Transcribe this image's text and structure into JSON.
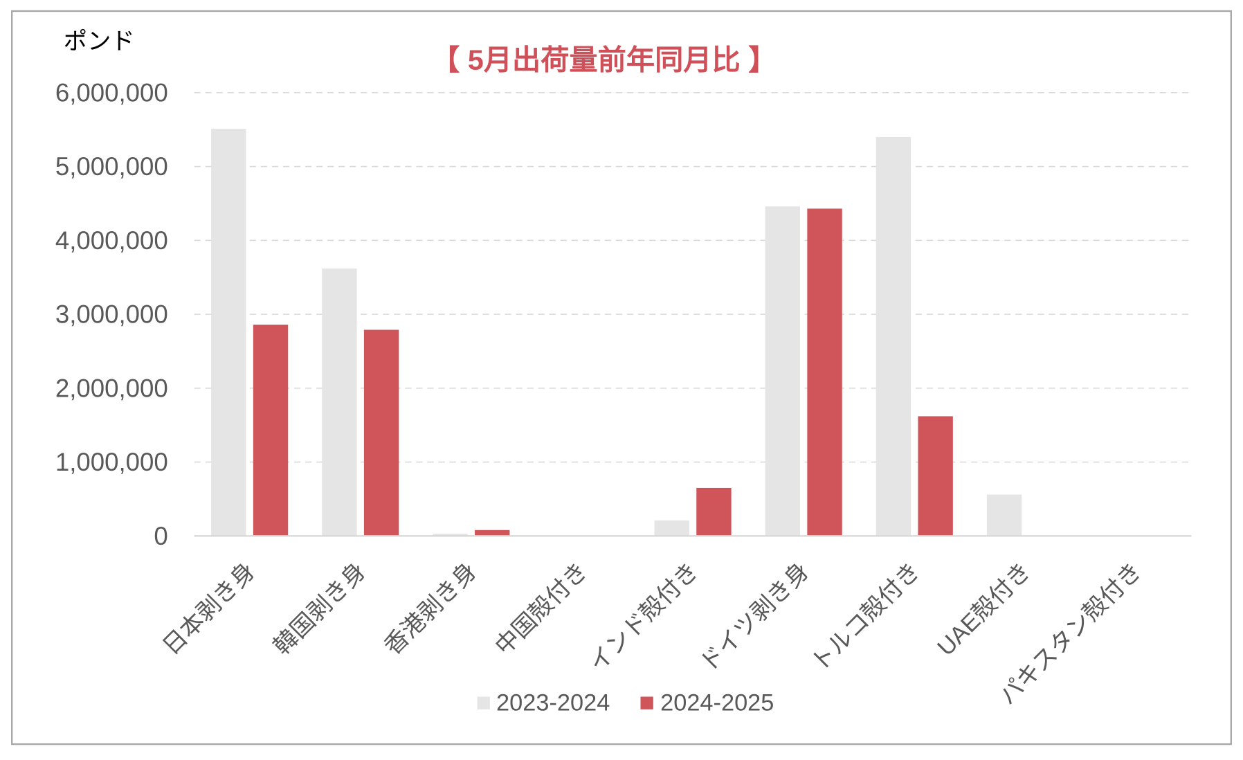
{
  "colors": {
    "title": "#d0505a"
  },
  "chart_data": {
    "type": "bar",
    "title": "【 5月出荷量前年同月比 】",
    "ylabel": "ポンド",
    "categories": [
      "日本剥き身",
      "韓国剥き身",
      "香港剥き身",
      "中国殻付き",
      "インド殻付き",
      "ドイツ剥き身",
      "トルコ殻付き",
      "UAE殻付き",
      "パキスタン殻付き"
    ],
    "series": [
      {
        "name": "2023-2024",
        "color": "#e5e5e5",
        "values": [
          5510000,
          3620000,
          30000,
          0,
          210000,
          4460000,
          5400000,
          560000,
          0
        ]
      },
      {
        "name": "2024-2025",
        "color": "#d0555a",
        "values": [
          2860000,
          2790000,
          80000,
          0,
          650000,
          4430000,
          1620000,
          0,
          0
        ]
      }
    ],
    "ylim": [
      0,
      6000000
    ],
    "yticks": [
      0,
      1000000,
      2000000,
      3000000,
      4000000,
      5000000,
      6000000
    ],
    "ytick_labels": [
      "0",
      "1,000,000",
      "2,000,000",
      "3,000,000",
      "4,000,000",
      "5,000,000",
      "6,000,000"
    ],
    "grid": true,
    "legend": "bottom"
  }
}
